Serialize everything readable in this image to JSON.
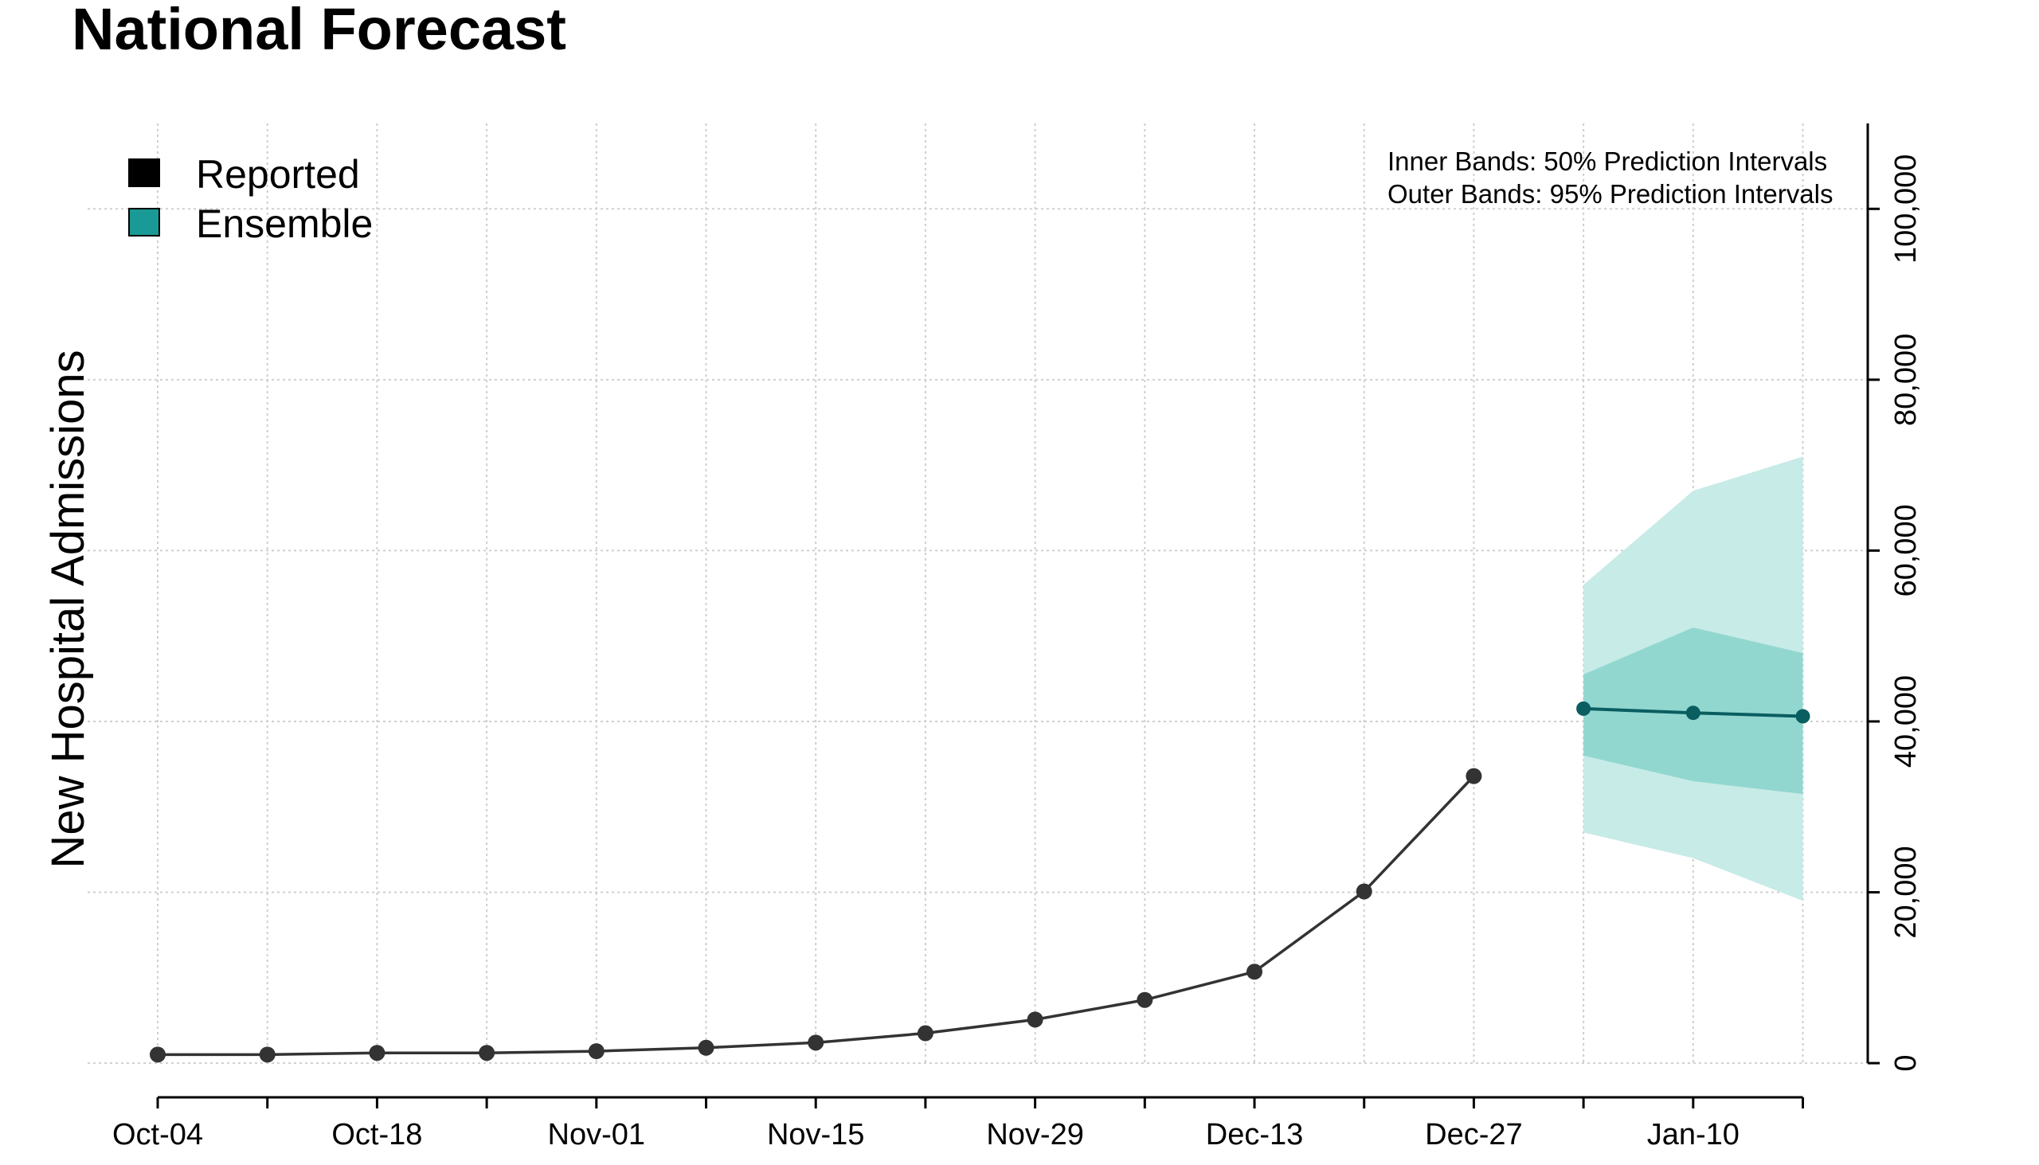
{
  "chart_data": {
    "type": "line",
    "title": "National Forecast",
    "ylabel": "New Hospital Admissions",
    "xlabel": "",
    "ylim": [
      -4000,
      110000
    ],
    "yticks": [
      0,
      20000,
      40000,
      60000,
      80000,
      100000
    ],
    "ytick_labels": [
      "0",
      "20,000",
      "40,000",
      "60,000",
      "80,000",
      "100,000"
    ],
    "yaxis_position": "right",
    "grid": true,
    "legend_position": "top-left",
    "xticks": [
      "2020-10-04",
      "2020-10-11",
      "2020-10-18",
      "2020-10-25",
      "2020-11-01",
      "2020-11-08",
      "2020-11-15",
      "2020-11-22",
      "2020-11-29",
      "2020-12-06",
      "2020-12-13",
      "2020-12-20",
      "2020-12-27",
      "2021-01-03",
      "2021-01-10",
      "2021-01-17"
    ],
    "xtick_labels": [
      "Oct-04",
      "",
      "Oct-18",
      "",
      "Nov-01",
      "",
      "Nov-15",
      "",
      "Nov-29",
      "",
      "Dec-13",
      "",
      "Dec-27",
      "",
      "Jan-10",
      ""
    ],
    "legend": [
      {
        "name": "Reported",
        "color": "#000000"
      },
      {
        "name": "Ensemble",
        "color": "#1a9a96"
      }
    ],
    "annotations": [
      "Inner Bands: 50% Prediction Intervals",
      "Outer Bands: 95% Prediction Intervals"
    ],
    "series": [
      {
        "name": "Reported",
        "color": "#333333",
        "x": [
          "2020-10-04",
          "2020-10-11",
          "2020-10-18",
          "2020-10-25",
          "2020-11-01",
          "2020-11-08",
          "2020-11-15",
          "2020-11-22",
          "2020-11-29",
          "2020-12-06",
          "2020-12-13",
          "2020-12-20",
          "2020-12-27"
        ],
        "y": [
          1000,
          1000,
          1200,
          1200,
          1400,
          1800,
          2400,
          3500,
          5100,
          7400,
          10700,
          20100,
          33600
        ]
      },
      {
        "name": "Ensemble",
        "color": "#0a5e60",
        "x": [
          "2021-01-03",
          "2021-01-10",
          "2021-01-17"
        ],
        "y": [
          41500,
          41000,
          40600
        ],
        "interval_50": {
          "lower": [
            36000,
            33000,
            31500
          ],
          "upper": [
            45500,
            51000,
            48000
          ]
        },
        "interval_95": {
          "lower": [
            27000,
            24000,
            19000
          ],
          "upper": [
            56000,
            67000,
            71000
          ]
        }
      }
    ],
    "colors": {
      "band_95": "#c7ebe7",
      "band_50": "#91d7d0",
      "grid": "#cfcfcf",
      "reported_point": "#333333"
    }
  }
}
